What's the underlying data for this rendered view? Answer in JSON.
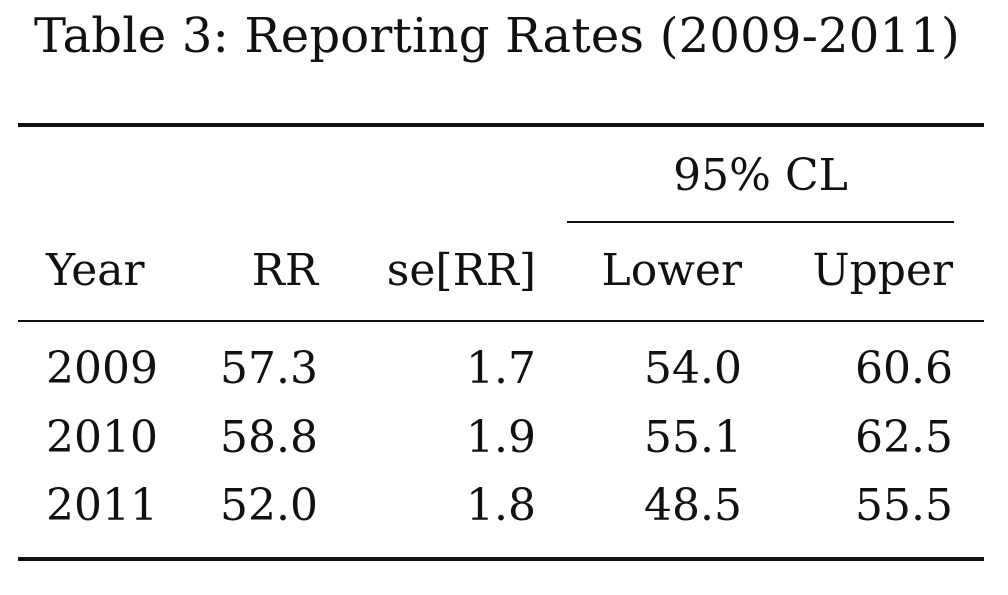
{
  "caption": "Table 3: Reporting Rates (2009-2011)",
  "group_header": "95% CL",
  "columns": [
    "Year",
    "RR",
    "se[RR]",
    "Lower",
    "Upper"
  ],
  "rows": [
    [
      "2009",
      "57.3",
      "1.7",
      "54.0",
      "60.6"
    ],
    [
      "2010",
      "58.8",
      "1.9",
      "55.1",
      "62.5"
    ],
    [
      "2011",
      "52.0",
      "1.8",
      "48.5",
      "55.5"
    ]
  ]
}
